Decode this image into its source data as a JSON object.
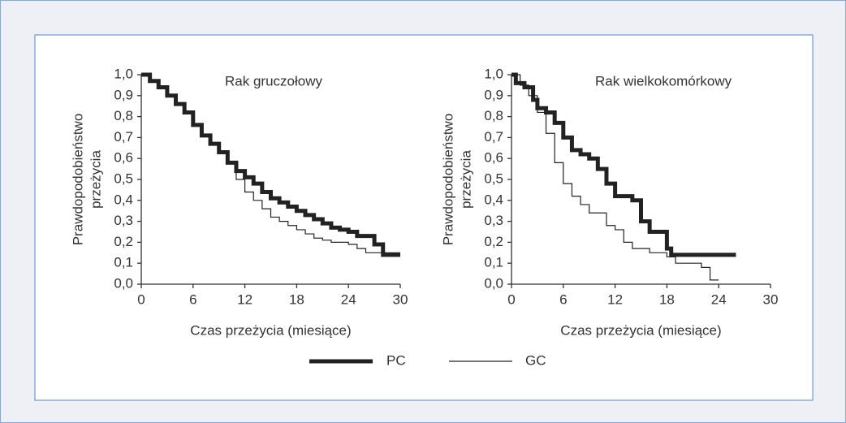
{
  "chart_data": [
    {
      "type": "line",
      "drawstyle": "steps-post",
      "title": "Rak gruczołowy",
      "xlabel": "Czas przeżycia (miesiące)",
      "ylabel": [
        "Prawdopodobieństwo",
        "przeżycia"
      ],
      "xlim": [
        0,
        30
      ],
      "ylim": [
        0,
        1
      ],
      "xticks": [
        0,
        6,
        12,
        18,
        24,
        30
      ],
      "yticks": [
        {
          "value": 0,
          "label": "0,0"
        },
        {
          "value": 0.1,
          "label": "0,1"
        },
        {
          "value": 0.2,
          "label": "0,2"
        },
        {
          "value": 0.3,
          "label": "0,3"
        },
        {
          "value": 0.4,
          "label": "0,4"
        },
        {
          "value": 0.5,
          "label": "0,5"
        },
        {
          "value": 0.6,
          "label": "0,6"
        },
        {
          "value": 0.7,
          "label": "0,7"
        },
        {
          "value": 0.8,
          "label": "0,8"
        },
        {
          "value": 0.9,
          "label": "0,9"
        },
        {
          "value": 1,
          "label": "1,0"
        }
      ],
      "series": [
        {
          "name": "PC",
          "color": "#222222",
          "width": 5,
          "x": [
            0,
            1,
            2,
            3,
            4,
            5,
            6,
            7,
            8,
            9,
            10,
            11,
            12,
            13,
            14,
            15,
            16,
            17,
            18,
            19,
            20,
            21,
            22,
            23,
            24,
            25,
            26,
            27,
            28,
            30
          ],
          "values": [
            1.0,
            0.97,
            0.94,
            0.9,
            0.86,
            0.82,
            0.76,
            0.71,
            0.67,
            0.63,
            0.58,
            0.54,
            0.51,
            0.48,
            0.44,
            0.41,
            0.39,
            0.37,
            0.35,
            0.33,
            0.31,
            0.29,
            0.27,
            0.26,
            0.25,
            0.23,
            0.23,
            0.19,
            0.14,
            0.14
          ]
        },
        {
          "name": "GC",
          "color": "#222222",
          "width": 1.2,
          "x": [
            0,
            1,
            2,
            3,
            4,
            5,
            6,
            7,
            8,
            9,
            10,
            11,
            12,
            13,
            14,
            15,
            16,
            17,
            18,
            19,
            20,
            21,
            22,
            24,
            25,
            26,
            30
          ],
          "values": [
            1.0,
            0.97,
            0.94,
            0.9,
            0.86,
            0.82,
            0.76,
            0.71,
            0.67,
            0.63,
            0.58,
            0.5,
            0.44,
            0.4,
            0.36,
            0.32,
            0.3,
            0.28,
            0.26,
            0.24,
            0.22,
            0.21,
            0.2,
            0.19,
            0.17,
            0.15,
            0.15
          ]
        }
      ]
    },
    {
      "type": "line",
      "drawstyle": "steps-post",
      "title": "Rak wielkokomórkowy",
      "xlabel": "Czas przeżycia (miesiące)",
      "ylabel": [
        "Prawdopodobieństwo",
        "przeżycia"
      ],
      "xlim": [
        0,
        30
      ],
      "ylim": [
        0,
        1
      ],
      "xticks": [
        0,
        6,
        12,
        18,
        24,
        30
      ],
      "yticks": [
        {
          "value": 0,
          "label": "0,0"
        },
        {
          "value": 0.1,
          "label": "0,1"
        },
        {
          "value": 0.2,
          "label": "0,2"
        },
        {
          "value": 0.3,
          "label": "0,3"
        },
        {
          "value": 0.4,
          "label": "0,4"
        },
        {
          "value": 0.5,
          "label": "0,5"
        },
        {
          "value": 0.6,
          "label": "0,6"
        },
        {
          "value": 0.7,
          "label": "0,7"
        },
        {
          "value": 0.8,
          "label": "0,8"
        },
        {
          "value": 0.9,
          "label": "0,9"
        },
        {
          "value": 1,
          "label": "1,0"
        }
      ],
      "series": [
        {
          "name": "PC",
          "color": "#222222",
          "width": 5,
          "x": [
            0,
            0.5,
            1.5,
            2.5,
            3,
            4,
            5,
            6,
            7,
            8,
            9,
            10,
            11,
            12,
            14,
            15,
            16,
            18,
            18.5,
            26
          ],
          "values": [
            1.0,
            0.96,
            0.94,
            0.88,
            0.84,
            0.82,
            0.77,
            0.7,
            0.64,
            0.62,
            0.6,
            0.55,
            0.48,
            0.42,
            0.4,
            0.3,
            0.25,
            0.17,
            0.14,
            0.14
          ]
        },
        {
          "name": "GC",
          "color": "#222222",
          "width": 1.2,
          "x": [
            0,
            1,
            2,
            3,
            4,
            5,
            6,
            7,
            8,
            9,
            11,
            12,
            13,
            14,
            16,
            18,
            19,
            22,
            23,
            24
          ],
          "values": [
            1.0,
            0.95,
            0.9,
            0.82,
            0.72,
            0.58,
            0.48,
            0.42,
            0.38,
            0.34,
            0.28,
            0.26,
            0.2,
            0.17,
            0.15,
            0.13,
            0.1,
            0.08,
            0.02,
            0.02
          ]
        }
      ]
    }
  ]
}
